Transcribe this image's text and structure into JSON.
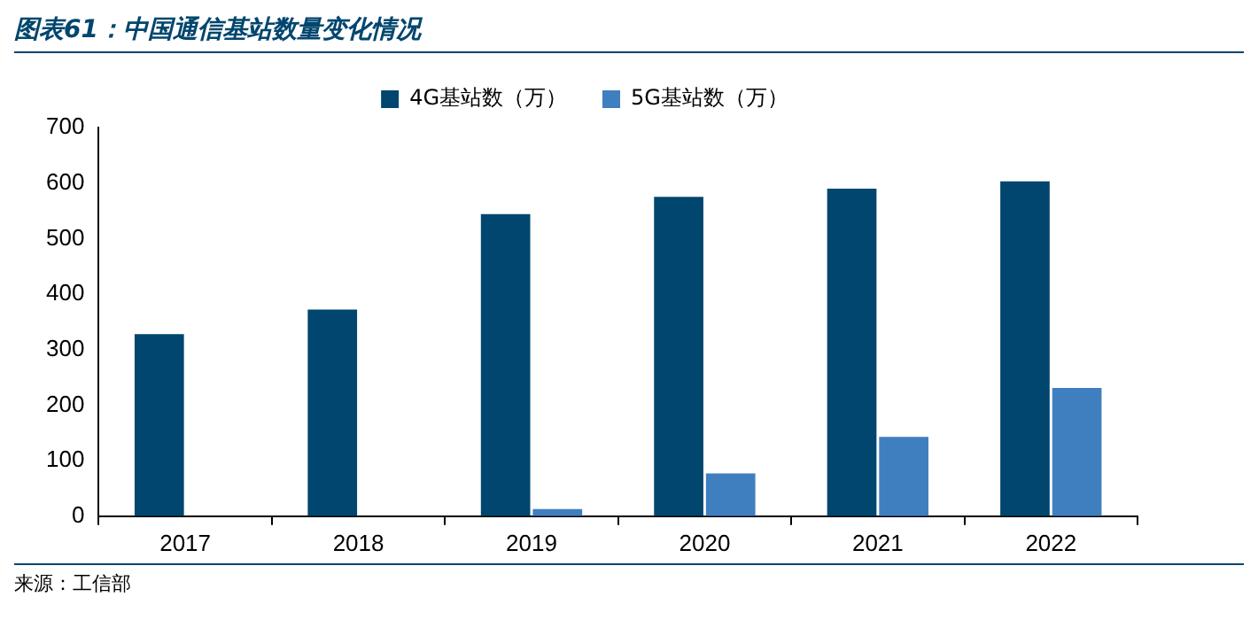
{
  "chart_data": {
    "type": "bar",
    "title": "图表61：中国通信基站数量变化情况",
    "categories": [
      "2017",
      "2018",
      "2019",
      "2020",
      "2021",
      "2022"
    ],
    "series": [
      {
        "name": "4G基站数（万）",
        "color": "#00466e",
        "values": [
          328,
          372,
          544,
          575,
          590,
          603
        ]
      },
      {
        "name": "5G基站数（万）",
        "color": "#3f7fc0",
        "values": [
          null,
          null,
          13,
          77,
          143,
          231
        ]
      }
    ],
    "ylim": [
      0,
      700
    ],
    "yticks": [
      0,
      100,
      200,
      300,
      400,
      500,
      600,
      700
    ],
    "grid": false,
    "legend": "top",
    "annotations": [
      "来源：工信部"
    ]
  }
}
